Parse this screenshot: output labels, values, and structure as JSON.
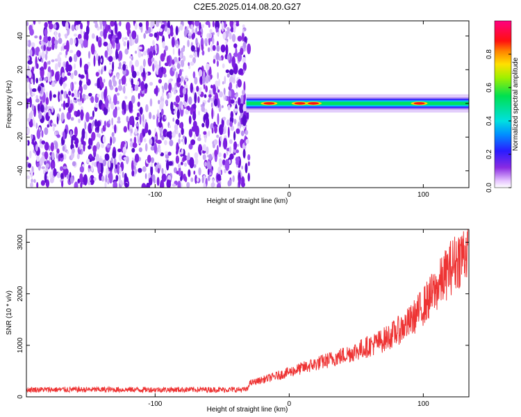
{
  "title": "C2E5.2025.014.08.20.G27",
  "colors": {
    "snr_line": "#ee3333",
    "frame": "#000000"
  },
  "chart_data": [
    {
      "type": "heatmap",
      "xlabel": "Height of straight line (km)",
      "ylabel": "Frequency (Hz)",
      "xlim": [
        -196,
        134
      ],
      "ylim": [
        -50,
        49
      ],
      "xticks": [
        -100,
        0,
        100
      ],
      "xtick_labels": [
        "-100",
        "0",
        "100"
      ],
      "yticks": [
        -40,
        -20,
        0,
        20,
        40
      ],
      "ytick_labels": [
        "-40",
        "-20",
        "0",
        "20",
        "40"
      ],
      "noise_region_x": [
        -196,
        -30
      ],
      "signal_band": {
        "x": [
          -32,
          134
        ],
        "frequency_center": 0,
        "frequency_halfwidth": 3
      },
      "peak_heights_km": [
        -15,
        8,
        18,
        97
      ],
      "colorbar": {
        "label": "Normalized spectral amplitude",
        "range": [
          0,
          1
        ],
        "ticks": [
          0.0,
          0.2,
          0.4,
          0.6,
          0.8
        ],
        "tick_labels": [
          "0.0",
          "0.2",
          "0.4",
          "0.6",
          "0.8"
        ],
        "colormap": "rainbow (white-violet-blue-cyan-green-yellow-red-magenta)"
      },
      "grid": false
    },
    {
      "type": "line",
      "xlabel": "Height of straight line (km)",
      "ylabel": "SNR (10 * v/v)",
      "xlim": [
        -196,
        134
      ],
      "ylim": [
        0,
        3250
      ],
      "xticks": [
        -100,
        0,
        100
      ],
      "xtick_labels": [
        "-100",
        "0",
        "100"
      ],
      "yticks": [
        0,
        1000,
        2000,
        3000
      ],
      "ytick_labels": [
        "0",
        "1000",
        "2000",
        "3000"
      ],
      "grid": false,
      "series": [
        {
          "x": [
            -196,
            -160,
            -120,
            -80,
            -40,
            -31,
            -30,
            -20,
            -10,
            0,
            10,
            20,
            30,
            40,
            50,
            60,
            70,
            80,
            90,
            100,
            110,
            120,
            134
          ],
          "y": [
            140,
            140,
            140,
            140,
            140,
            140,
            260,
            330,
            400,
            480,
            560,
            640,
            720,
            800,
            890,
            990,
            1100,
            1260,
            1450,
            1760,
            2100,
            2500,
            2900
          ]
        }
      ]
    }
  ]
}
